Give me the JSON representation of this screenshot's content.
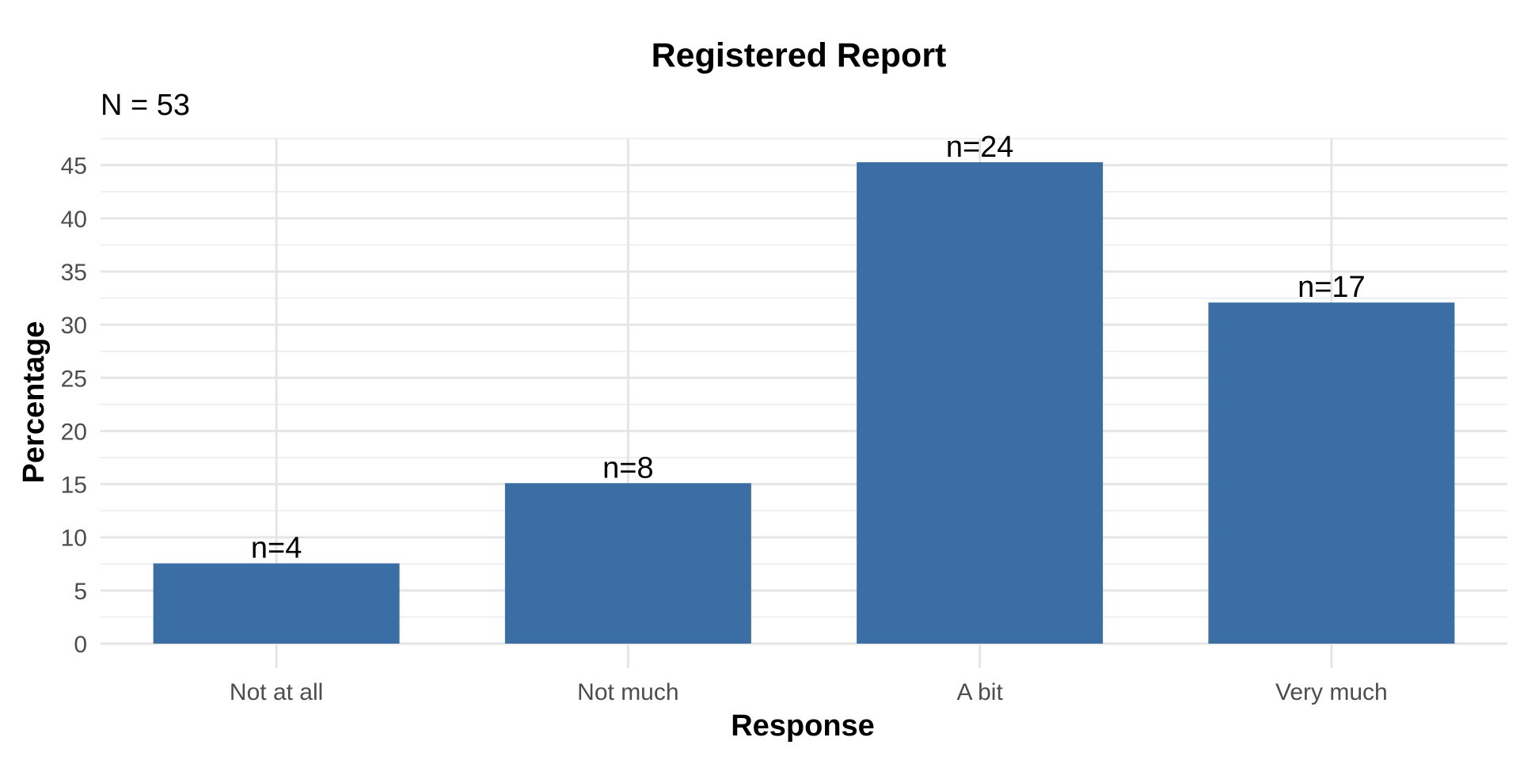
{
  "chart_data": {
    "type": "bar",
    "title": "Registered Report",
    "subtitle": "N = 53",
    "xlabel": "Response",
    "ylabel": "Percentage",
    "categories": [
      "Not at all",
      "Not much",
      "A bit",
      "Very much"
    ],
    "values": [
      7.55,
      15.09,
      45.28,
      32.08
    ],
    "data_labels": [
      "n=4",
      "n=8",
      "n=24",
      "n=17"
    ],
    "ylim": [
      0,
      47.5
    ],
    "yticks": [
      0,
      5,
      10,
      15,
      20,
      25,
      30,
      35,
      40,
      45
    ],
    "ytick_labels": [
      "0",
      "5",
      "10",
      "15",
      "20",
      "25",
      "30",
      "35",
      "40",
      "45"
    ],
    "grid": true,
    "legend": "none",
    "bar_color": "#3a6ea5"
  }
}
